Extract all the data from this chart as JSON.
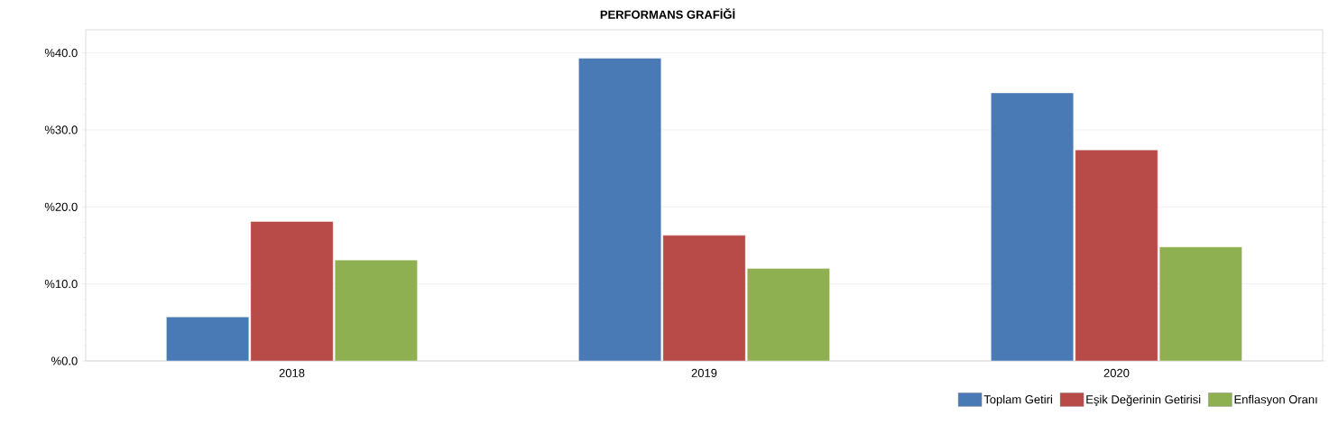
{
  "chart_data": {
    "type": "bar",
    "title": "PERFORMANS GRAFİĞİ",
    "categories": [
      "2018",
      "2019",
      "2020"
    ],
    "series": [
      {
        "name": "Toplam Getiri",
        "color": "#4a7ab5",
        "values": [
          5.7,
          39.3,
          34.8
        ]
      },
      {
        "name": "Eşik Değerinin Getirisi",
        "color": "#b84a47",
        "values": [
          18.1,
          16.3,
          27.4
        ]
      },
      {
        "name": "Enflasyon Oranı",
        "color": "#8fb050",
        "values": [
          13.1,
          12.0,
          14.8
        ]
      }
    ],
    "ylim": [
      0,
      43
    ],
    "yticks": [
      {
        "value": 0,
        "label": "%0.0"
      },
      {
        "value": 10,
        "label": "%10.0"
      },
      {
        "value": 20,
        "label": "%20.0"
      },
      {
        "value": 30,
        "label": "%30.0"
      },
      {
        "value": 40,
        "label": "%40.0"
      }
    ],
    "grid": "y",
    "legend": "bottom right"
  }
}
